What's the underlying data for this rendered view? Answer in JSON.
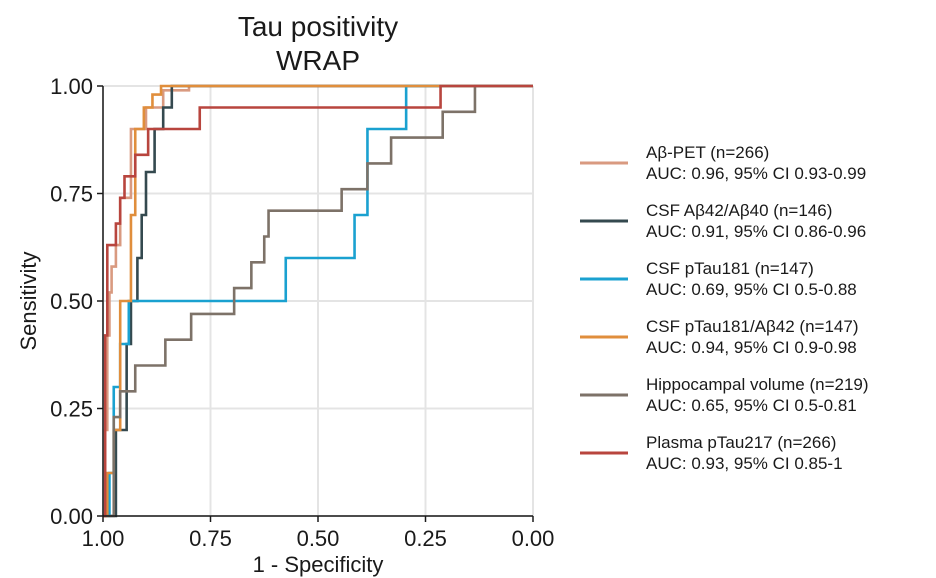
{
  "chart_data": {
    "type": "line",
    "title": [
      "Tau positivity",
      "WRAP"
    ],
    "xlabel": "1 - Specificity",
    "ylabel": "Sensitivity",
    "x_reversed": true,
    "xlim": [
      1.0,
      0.0
    ],
    "ylim": [
      0.0,
      1.0
    ],
    "x_ticks": [
      1.0,
      0.75,
      0.5,
      0.25,
      0.0
    ],
    "x_tick_labels": [
      "1.00",
      "0.75",
      "0.50",
      "0.25",
      "0.00"
    ],
    "y_ticks": [
      0.0,
      0.25,
      0.5,
      0.75,
      1.0
    ],
    "y_tick_labels": [
      "0.00",
      "0.25",
      "0.50",
      "0.75",
      "1.00"
    ],
    "grid": true,
    "legend_position": "right",
    "series": [
      {
        "name": "Aβ-PET (n=266)",
        "auc_label": "AUC: 0.96, 95% CI 0.93-0.99",
        "color": "#d99a80",
        "x": [
          1.0,
          0.995,
          0.995,
          0.99,
          0.99,
          0.985,
          0.985,
          0.98,
          0.98,
          0.97,
          0.97,
          0.96,
          0.96,
          0.935,
          0.935,
          0.9,
          0.9,
          0.86,
          0.86,
          0.8,
          0.8,
          0.0
        ],
        "y": [
          0.0,
          0.0,
          0.2,
          0.2,
          0.42,
          0.42,
          0.52,
          0.52,
          0.58,
          0.58,
          0.63,
          0.63,
          0.74,
          0.74,
          0.9,
          0.9,
          0.95,
          0.95,
          0.99,
          0.99,
          1.0,
          1.0
        ]
      },
      {
        "name": "CSF Aβ42/Aβ40 (n=146)",
        "auc_label": "AUC: 0.91, 95% CI 0.86-0.96",
        "color": "#34494f",
        "x": [
          1.0,
          0.97,
          0.97,
          0.945,
          0.945,
          0.935,
          0.935,
          0.92,
          0.92,
          0.91,
          0.91,
          0.9,
          0.9,
          0.88,
          0.88,
          0.86,
          0.86,
          0.84,
          0.84,
          0.0
        ],
        "y": [
          0.0,
          0.0,
          0.2,
          0.2,
          0.4,
          0.4,
          0.5,
          0.5,
          0.6,
          0.6,
          0.7,
          0.7,
          0.8,
          0.8,
          0.9,
          0.9,
          0.95,
          0.95,
          1.0,
          1.0
        ]
      },
      {
        "name": "CSF pTau181 (n=147)",
        "auc_label": "AUC: 0.69, 95% CI 0.5-0.88",
        "color": "#1aa1d0",
        "x": [
          1.0,
          0.985,
          0.985,
          0.975,
          0.975,
          0.96,
          0.96,
          0.94,
          0.94,
          0.905,
          0.905,
          0.575,
          0.575,
          0.415,
          0.415,
          0.385,
          0.385,
          0.295,
          0.295,
          0.0
        ],
        "y": [
          0.0,
          0.0,
          0.1,
          0.1,
          0.3,
          0.3,
          0.4,
          0.4,
          0.5,
          0.5,
          0.5,
          0.5,
          0.6,
          0.6,
          0.7,
          0.7,
          0.9,
          0.9,
          1.0,
          1.0
        ]
      },
      {
        "name": "CSF pTau181/Aβ42 (n=147)",
        "auc_label": "AUC: 0.94, 95% CI 0.9-0.98",
        "color": "#e08e3c",
        "x": [
          1.0,
          0.99,
          0.99,
          0.975,
          0.975,
          0.96,
          0.96,
          0.935,
          0.935,
          0.925,
          0.925,
          0.905,
          0.905,
          0.885,
          0.885,
          0.865,
          0.865,
          0.0
        ],
        "y": [
          0.0,
          0.0,
          0.1,
          0.1,
          0.2,
          0.2,
          0.5,
          0.5,
          0.7,
          0.7,
          0.9,
          0.9,
          0.95,
          0.95,
          0.98,
          0.98,
          1.0,
          1.0
        ]
      },
      {
        "name": "Hippocampal volume (n=219)",
        "auc_label": "AUC: 0.65, 95% CI 0.5-0.81",
        "color": "#7d7268",
        "x": [
          1.0,
          0.975,
          0.975,
          0.96,
          0.96,
          0.925,
          0.925,
          0.855,
          0.855,
          0.795,
          0.795,
          0.695,
          0.695,
          0.655,
          0.655,
          0.625,
          0.625,
          0.615,
          0.615,
          0.565,
          0.565,
          0.445,
          0.445,
          0.385,
          0.385,
          0.33,
          0.33,
          0.21,
          0.21,
          0.135,
          0.135,
          0.0
        ],
        "y": [
          0.0,
          0.0,
          0.23,
          0.23,
          0.29,
          0.29,
          0.35,
          0.35,
          0.41,
          0.41,
          0.47,
          0.47,
          0.53,
          0.53,
          0.59,
          0.59,
          0.65,
          0.65,
          0.71,
          0.71,
          0.71,
          0.71,
          0.76,
          0.76,
          0.82,
          0.82,
          0.88,
          0.88,
          0.94,
          0.94,
          1.0,
          1.0
        ]
      },
      {
        "name": "Plasma pTau217 (n=266)",
        "auc_label": "AUC: 0.93, 95% CI 0.85-1",
        "color": "#b8453e",
        "x": [
          1.0,
          0.995,
          0.995,
          0.99,
          0.99,
          0.97,
          0.97,
          0.96,
          0.96,
          0.95,
          0.95,
          0.925,
          0.925,
          0.895,
          0.895,
          0.855,
          0.855,
          0.775,
          0.775,
          0.215,
          0.215,
          0.0
        ],
        "y": [
          0.0,
          0.0,
          0.42,
          0.42,
          0.63,
          0.63,
          0.68,
          0.68,
          0.74,
          0.74,
          0.79,
          0.79,
          0.84,
          0.84,
          0.9,
          0.9,
          0.9,
          0.9,
          0.95,
          0.95,
          1.0,
          1.0
        ]
      }
    ]
  }
}
